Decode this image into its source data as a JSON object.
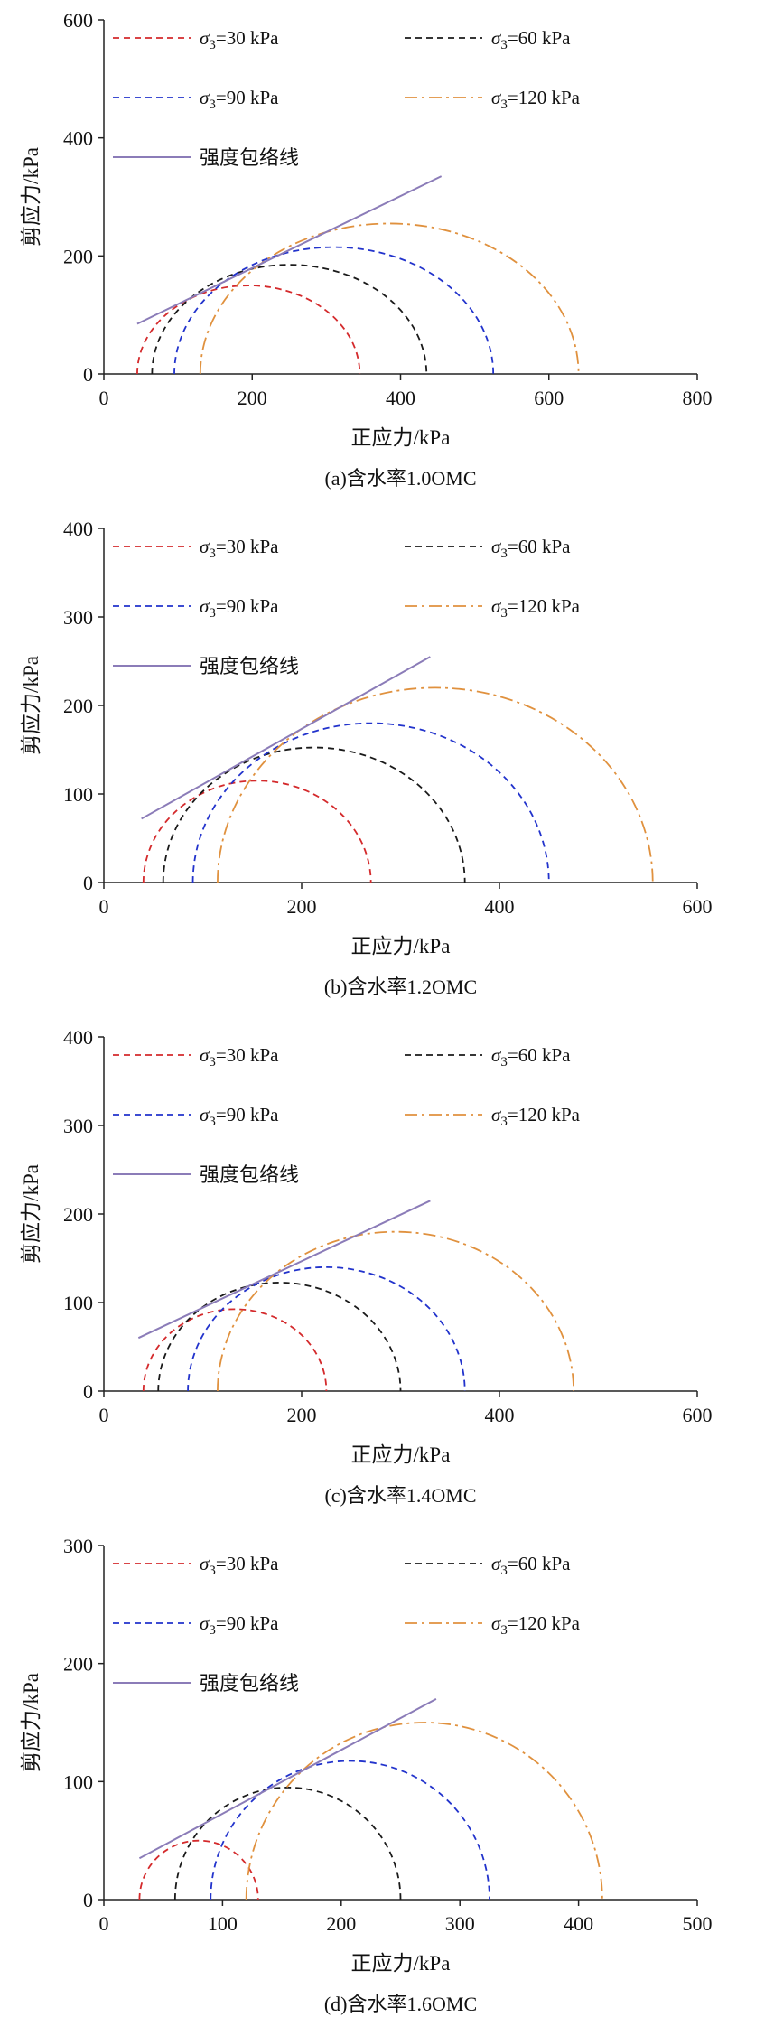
{
  "legend": {
    "series": [
      {
        "symbol": "σ",
        "sub": "3",
        "rest": "=30 kPa",
        "color": "#d42a2c",
        "line_style": "dashed"
      },
      {
        "symbol": "σ",
        "sub": "3",
        "rest": "=60 kPa",
        "color": "#1a1a1a",
        "line_style": "dashed"
      },
      {
        "symbol": "σ",
        "sub": "3",
        "rest": "=90 kPa",
        "color": "#2233cc",
        "line_style": "dashed"
      },
      {
        "symbol": "σ",
        "sub": "3",
        "rest": "=120 kPa",
        "color": "#e0913e",
        "line_style": "dashdot"
      }
    ],
    "envelope_label": "强度包络线",
    "envelope_color": "#8b7cb8"
  },
  "chart_data": [
    {
      "type": "line",
      "subtype": "mohr-circles",
      "caption": "(a)含水率1.0OMC",
      "xlabel": "正应力/kPa",
      "ylabel": "剪应力/kPa",
      "xlim": [
        0,
        800
      ],
      "xticks": [
        0,
        200,
        400,
        600,
        800
      ],
      "ylim": [
        0,
        600
      ],
      "yticks": [
        0,
        200,
        400,
        600
      ],
      "circles": [
        {
          "sigma3_kPa": 30,
          "x_start": 45,
          "x_end": 345,
          "center": 195,
          "radius": 150
        },
        {
          "sigma3_kPa": 60,
          "x_start": 65,
          "x_end": 435,
          "center": 250,
          "radius": 185
        },
        {
          "sigma3_kPa": 90,
          "x_start": 95,
          "x_end": 525,
          "center": 310,
          "radius": 215
        },
        {
          "sigma3_kPa": 120,
          "x_start": 130,
          "x_end": 640,
          "center": 385,
          "radius": 255
        }
      ],
      "envelope": {
        "x1": 45,
        "y1": 85,
        "x2": 455,
        "y2": 335
      }
    },
    {
      "type": "line",
      "subtype": "mohr-circles",
      "caption": "(b)含水率1.2OMC",
      "xlabel": "正应力/kPa",
      "ylabel": "剪应力/kPa",
      "xlim": [
        0,
        600
      ],
      "xticks": [
        0,
        200,
        400,
        600
      ],
      "ylim": [
        0,
        400
      ],
      "yticks": [
        0,
        100,
        200,
        300,
        400
      ],
      "circles": [
        {
          "sigma3_kPa": 30,
          "x_start": 40,
          "x_end": 270,
          "center": 155,
          "radius": 115
        },
        {
          "sigma3_kPa": 60,
          "x_start": 60,
          "x_end": 365,
          "center": 212.5,
          "radius": 152.5
        },
        {
          "sigma3_kPa": 90,
          "x_start": 90,
          "x_end": 450,
          "center": 270,
          "radius": 180
        },
        {
          "sigma3_kPa": 120,
          "x_start": 115,
          "x_end": 555,
          "center": 335,
          "radius": 220
        }
      ],
      "envelope": {
        "x1": 38,
        "y1": 72,
        "x2": 330,
        "y2": 255
      }
    },
    {
      "type": "line",
      "subtype": "mohr-circles",
      "caption": "(c)含水率1.4OMC",
      "xlabel": "正应力/kPa",
      "ylabel": "剪应力/kPa",
      "xlim": [
        0,
        600
      ],
      "xticks": [
        0,
        200,
        400,
        600
      ],
      "ylim": [
        0,
        400
      ],
      "yticks": [
        0,
        100,
        200,
        300,
        400
      ],
      "circles": [
        {
          "sigma3_kPa": 30,
          "x_start": 40,
          "x_end": 225,
          "center": 132.5,
          "radius": 92.5
        },
        {
          "sigma3_kPa": 60,
          "x_start": 55,
          "x_end": 300,
          "center": 177.5,
          "radius": 122.5
        },
        {
          "sigma3_kPa": 90,
          "x_start": 85,
          "x_end": 365,
          "center": 225,
          "radius": 140
        },
        {
          "sigma3_kPa": 120,
          "x_start": 115,
          "x_end": 475,
          "center": 295,
          "radius": 180
        }
      ],
      "envelope": {
        "x1": 35,
        "y1": 60,
        "x2": 330,
        "y2": 215
      }
    },
    {
      "type": "line",
      "subtype": "mohr-circles",
      "caption": "(d)含水率1.6OMC",
      "xlabel": "正应力/kPa",
      "ylabel": "剪应力/kPa",
      "xlim": [
        0,
        500
      ],
      "xticks": [
        0,
        100,
        200,
        300,
        400,
        500
      ],
      "ylim": [
        0,
        300
      ],
      "yticks": [
        0,
        100,
        200,
        300
      ],
      "circles": [
        {
          "sigma3_kPa": 30,
          "x_start": 30,
          "x_end": 130,
          "center": 80,
          "radius": 50
        },
        {
          "sigma3_kPa": 60,
          "x_start": 60,
          "x_end": 250,
          "center": 155,
          "radius": 95
        },
        {
          "sigma3_kPa": 90,
          "x_start": 90,
          "x_end": 325,
          "center": 207.5,
          "radius": 117.5
        },
        {
          "sigma3_kPa": 120,
          "x_start": 120,
          "x_end": 420,
          "center": 270,
          "radius": 150
        }
      ],
      "envelope": {
        "x1": 30,
        "y1": 35,
        "x2": 280,
        "y2": 170
      }
    }
  ]
}
